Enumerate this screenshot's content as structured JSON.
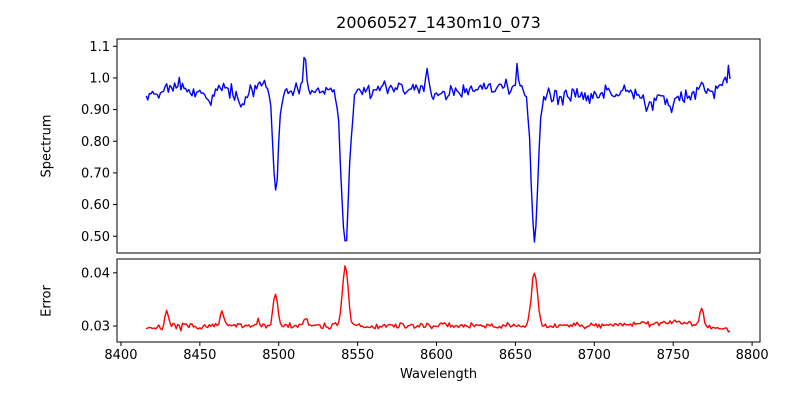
{
  "chart_data": {
    "type": "line",
    "title": "20060527_1430m10_073",
    "xlabel": "Wavelength",
    "xlim": [
      8397.5,
      8805
    ],
    "x_ticks": [
      8400,
      8450,
      8500,
      8550,
      8600,
      8650,
      8700,
      8750,
      8800
    ],
    "grid": false,
    "legend": "none",
    "axis_color": "#000000",
    "subplots": [
      {
        "ylabel": "Spectrum",
        "ylim": [
          0.447,
          1.123
        ],
        "y_ticks": [
          0.5,
          0.6,
          0.7,
          0.8,
          0.9,
          1.0,
          1.1
        ],
        "series": {
          "name": "spectrum",
          "color": "#0000ff",
          "x_start": 8416,
          "x_end": 8786,
          "x_step": 1,
          "continuum_anchors": [
            [
              8416,
              0.935
            ],
            [
              8420,
              0.962
            ],
            [
              8425,
              0.955
            ],
            [
              8428,
              0.975
            ],
            [
              8433,
              0.958
            ],
            [
              8437,
              0.978
            ],
            [
              8445,
              0.952
            ],
            [
              8450,
              0.965
            ],
            [
              8457,
              0.928
            ],
            [
              8462,
              0.965
            ],
            [
              8470,
              0.958
            ],
            [
              8477,
              0.915
            ],
            [
              8482,
              0.962
            ],
            [
              8490,
              0.972
            ],
            [
              8505,
              0.952
            ],
            [
              8512,
              0.968
            ],
            [
              8520,
              0.958
            ],
            [
              8530,
              0.965
            ],
            [
              8542,
              0.958
            ],
            [
              8560,
              0.965
            ],
            [
              8580,
              0.972
            ],
            [
              8600,
              0.952
            ],
            [
              8620,
              0.958
            ],
            [
              8640,
              0.972
            ],
            [
              8655,
              0.958
            ],
            [
              8670,
              0.952
            ],
            [
              8680,
              0.928
            ],
            [
              8686,
              0.952
            ],
            [
              8695,
              0.938
            ],
            [
              8705,
              0.958
            ],
            [
              8715,
              0.952
            ],
            [
              8725,
              0.958
            ],
            [
              8735,
              0.915
            ],
            [
              8742,
              0.948
            ],
            [
              8748,
              0.902
            ],
            [
              8752,
              0.932
            ],
            [
              8758,
              0.94
            ],
            [
              8765,
              0.958
            ],
            [
              8770,
              0.975
            ],
            [
              8775,
              0.958
            ],
            [
              8780,
              0.982
            ],
            [
              8786,
              1.005
            ]
          ],
          "gaussian_features": [
            {
              "c": 8498.0,
              "a": -0.325,
              "s": 1.7
            },
            {
              "c": 8542.1,
              "a": -0.5,
              "s": 2.4
            },
            {
              "c": 8662.1,
              "a": -0.47,
              "s": 2.1
            },
            {
              "c": 8516.5,
              "a": 0.115,
              "s": 0.9
            },
            {
              "c": 8594.0,
              "a": 0.075,
              "s": 0.8
            },
            {
              "c": 8651.0,
              "a": 0.07,
              "s": 0.8
            }
          ],
          "absorption_line_minima": {
            "8498": 0.63,
            "8542": 0.46,
            "8662": 0.48
          },
          "noise_amplitude": 0.022,
          "seed": 42
        }
      },
      {
        "ylabel": "Error",
        "ylim": [
          0.027,
          0.0426
        ],
        "y_ticks": [
          0.03,
          0.04
        ],
        "series": {
          "name": "error",
          "color": "#ff0000",
          "x_start": 8416,
          "x_end": 8786,
          "x_step": 1,
          "continuum_anchors": [
            [
              8416,
              0.0297
            ],
            [
              8440,
              0.0299
            ],
            [
              8470,
              0.03
            ],
            [
              8520,
              0.0301
            ],
            [
              8560,
              0.0299
            ],
            [
              8600,
              0.0301
            ],
            [
              8640,
              0.03
            ],
            [
              8680,
              0.0301
            ],
            [
              8700,
              0.0302
            ],
            [
              8720,
              0.0303
            ],
            [
              8740,
              0.0306
            ],
            [
              8755,
              0.0308
            ],
            [
              8762,
              0.0305
            ],
            [
              8770,
              0.0302
            ],
            [
              8776,
              0.0295
            ],
            [
              8786,
              0.0294
            ]
          ],
          "gaussian_features": [
            {
              "c": 8429.0,
              "a": 0.0033,
              "s": 1.0
            },
            {
              "c": 8464.0,
              "a": 0.0031,
              "s": 1.0
            },
            {
              "c": 8487.0,
              "a": 0.0012,
              "s": 0.8
            },
            {
              "c": 8498.0,
              "a": 0.006,
              "s": 1.4
            },
            {
              "c": 8517.0,
              "a": 0.0013,
              "s": 0.8
            },
            {
              "c": 8542.1,
              "a": 0.0113,
              "s": 1.8
            },
            {
              "c": 8662.1,
              "a": 0.01,
              "s": 1.8
            },
            {
              "c": 8768.0,
              "a": 0.0035,
              "s": 1.0
            }
          ],
          "error_peak_maxima": {
            "8542": 0.042,
            "8662": 0.04,
            "8498": 0.0365
          },
          "noise_amplitude": 0.00055,
          "seed": 7
        }
      }
    ]
  }
}
